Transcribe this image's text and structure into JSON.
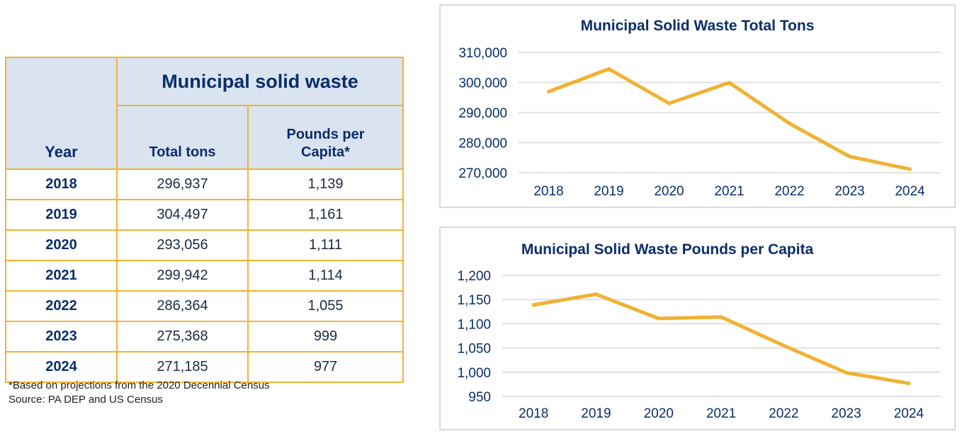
{
  "table": {
    "year_header": "Year",
    "group_header": "Municipal solid waste",
    "col_tons": "Total tons",
    "col_ppc_line1": "Pounds per",
    "col_ppc_line2": "Capita*",
    "rows": [
      {
        "year": "2018",
        "tons": "296,937",
        "ppc": "1,139"
      },
      {
        "year": "2019",
        "tons": "304,497",
        "ppc": "1,161"
      },
      {
        "year": "2020",
        "tons": "293,056",
        "ppc": "1,111"
      },
      {
        "year": "2021",
        "tons": "299,942",
        "ppc": "1,114"
      },
      {
        "year": "2022",
        "tons": "286,364",
        "ppc": "1,055"
      },
      {
        "year": "2023",
        "tons": "275,368",
        "ppc": "999"
      },
      {
        "year": "2024",
        "tons": "271,185",
        "ppc": "977"
      }
    ],
    "note": "*Based on projections from the 2020 Decennial Census",
    "source": "Source: PA DEP and US Census"
  },
  "colors": {
    "line": "#f0b232",
    "grid": "#d9d9d9",
    "text": "#0b2d6b",
    "table_border": "#f2b233",
    "table_header_bg": "#dae3f0"
  },
  "chart_data": [
    {
      "type": "line",
      "title": "Municipal Solid Waste Total Tons",
      "x": [
        "2018",
        "2019",
        "2020",
        "2021",
        "2022",
        "2023",
        "2024"
      ],
      "values": [
        296937,
        304497,
        293056,
        299942,
        286364,
        275368,
        271185
      ],
      "ylim": [
        270000,
        310000
      ],
      "yticks": [
        270000,
        280000,
        290000,
        300000,
        310000
      ],
      "ytick_labels": [
        "270,000",
        "280,000",
        "290,000",
        "300,000",
        "310,000"
      ],
      "grid": true,
      "xlabel": "",
      "ylabel": ""
    },
    {
      "type": "line",
      "title": "Municipal Solid Waste Pounds per Capita",
      "x": [
        "2018",
        "2019",
        "2020",
        "2021",
        "2022",
        "2023",
        "2024"
      ],
      "values": [
        1139,
        1161,
        1111,
        1114,
        1055,
        999,
        977
      ],
      "ylim": [
        950,
        1200
      ],
      "yticks": [
        950,
        1000,
        1050,
        1100,
        1150,
        1200
      ],
      "ytick_labels": [
        "950",
        "1,000",
        "1,050",
        "1,100",
        "1,150",
        "1,200"
      ],
      "grid": true,
      "xlabel": "",
      "ylabel": ""
    }
  ]
}
